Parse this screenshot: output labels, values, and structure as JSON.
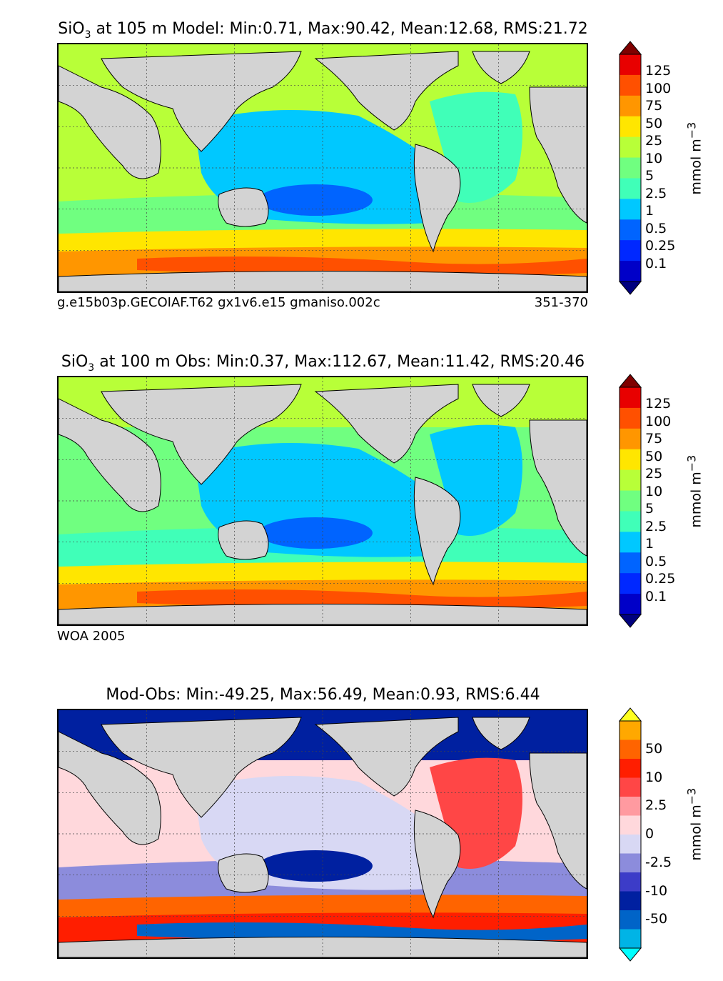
{
  "panels": [
    {
      "title_main": "SiO",
      "title_sub": "3",
      "title_rest": " at 105 m Model: Min:0.71, Max:90.42, Mean:12.68, RMS:21.72",
      "caption_left": "g.e15b03p.GECOIAF.T62 gx1v6.e15 gmaniso.002c",
      "caption_right": "351-370",
      "colorbar": {
        "ticks": [
          "0.1",
          "0.25",
          "0.5",
          "1",
          "2.5",
          "5",
          "10",
          "25",
          "50",
          "75",
          "100",
          "125"
        ],
        "unit": "mmol m",
        "unit_sup": "−3",
        "colors": [
          "#00007f",
          "#0000c8",
          "#0028ff",
          "#0064ff",
          "#00c8ff",
          "#40ffb8",
          "#70ff80",
          "#b8ff38",
          "#ffe600",
          "#ff9600",
          "#ff5000",
          "#e80000",
          "#7f0000"
        ]
      }
    },
    {
      "title_main": "SiO",
      "title_sub": "3",
      "title_rest": " at 100 m Obs: Min:0.37, Max:112.67, Mean:11.42, RMS:20.46",
      "caption_left": "WOA 2005",
      "caption_right": "",
      "colorbar": {
        "ticks": [
          "0.1",
          "0.25",
          "0.5",
          "1",
          "2.5",
          "5",
          "10",
          "25",
          "50",
          "75",
          "100",
          "125"
        ],
        "unit": "mmol m",
        "unit_sup": "−3",
        "colors": [
          "#00007f",
          "#0000c8",
          "#0028ff",
          "#0064ff",
          "#00c8ff",
          "#40ffb8",
          "#70ff80",
          "#b8ff38",
          "#ffe600",
          "#ff9600",
          "#ff5000",
          "#e80000",
          "#7f0000"
        ]
      }
    },
    {
      "title_main": "Mod-Obs: Min:-49.25, Max:56.49, Mean:0.93, RMS:6.44",
      "title_sub": "",
      "title_rest": "",
      "caption_left": "",
      "caption_right": "",
      "colorbar": {
        "ticks": [
          "-50",
          "-10",
          "-2.5",
          "0",
          "2.5",
          "10",
          "50"
        ],
        "unit": "mmol m",
        "unit_sup": "−3",
        "colors": [
          "#00ffff",
          "#00b4e6",
          "#0064c8",
          "#0020a0",
          "#3c3cc8",
          "#8c8cdc",
          "#d8d8f4",
          "#ffd8dc",
          "#ff9aa0",
          "#ff4646",
          "#ff1e00",
          "#ff6400",
          "#ffa800",
          "#ffff20"
        ]
      }
    }
  ],
  "fields": {
    "model": {
      "land": "#d3d3d3",
      "base": "#b8ff38",
      "pac": "#00c8ff",
      "pac_core": "#0064ff",
      "south1": "#ffe600",
      "south2": "#ff9600",
      "south3": "#ff5000",
      "mid": "#70ff80",
      "north": "#b8ff38",
      "atl": "#40ffb8"
    },
    "obs": {
      "land": "#d3d3d3",
      "base": "#70ff80",
      "pac": "#00c8ff",
      "pac_core": "#0064ff",
      "south1": "#ffe600",
      "south2": "#ff9600",
      "south3": "#ff5000",
      "mid": "#40ffb8",
      "north": "#b8ff38",
      "atl": "#00c8ff"
    },
    "diff": {
      "land": "#d3d3d3",
      "base": "#ffd8dc",
      "pac": "#d8d8f4",
      "pac_core": "#0020a0",
      "south1": "#ff6400",
      "south2": "#ff1e00",
      "south3": "#0064c8",
      "mid": "#8c8cdc",
      "north": "#0020a0",
      "atl": "#ff4646"
    }
  }
}
